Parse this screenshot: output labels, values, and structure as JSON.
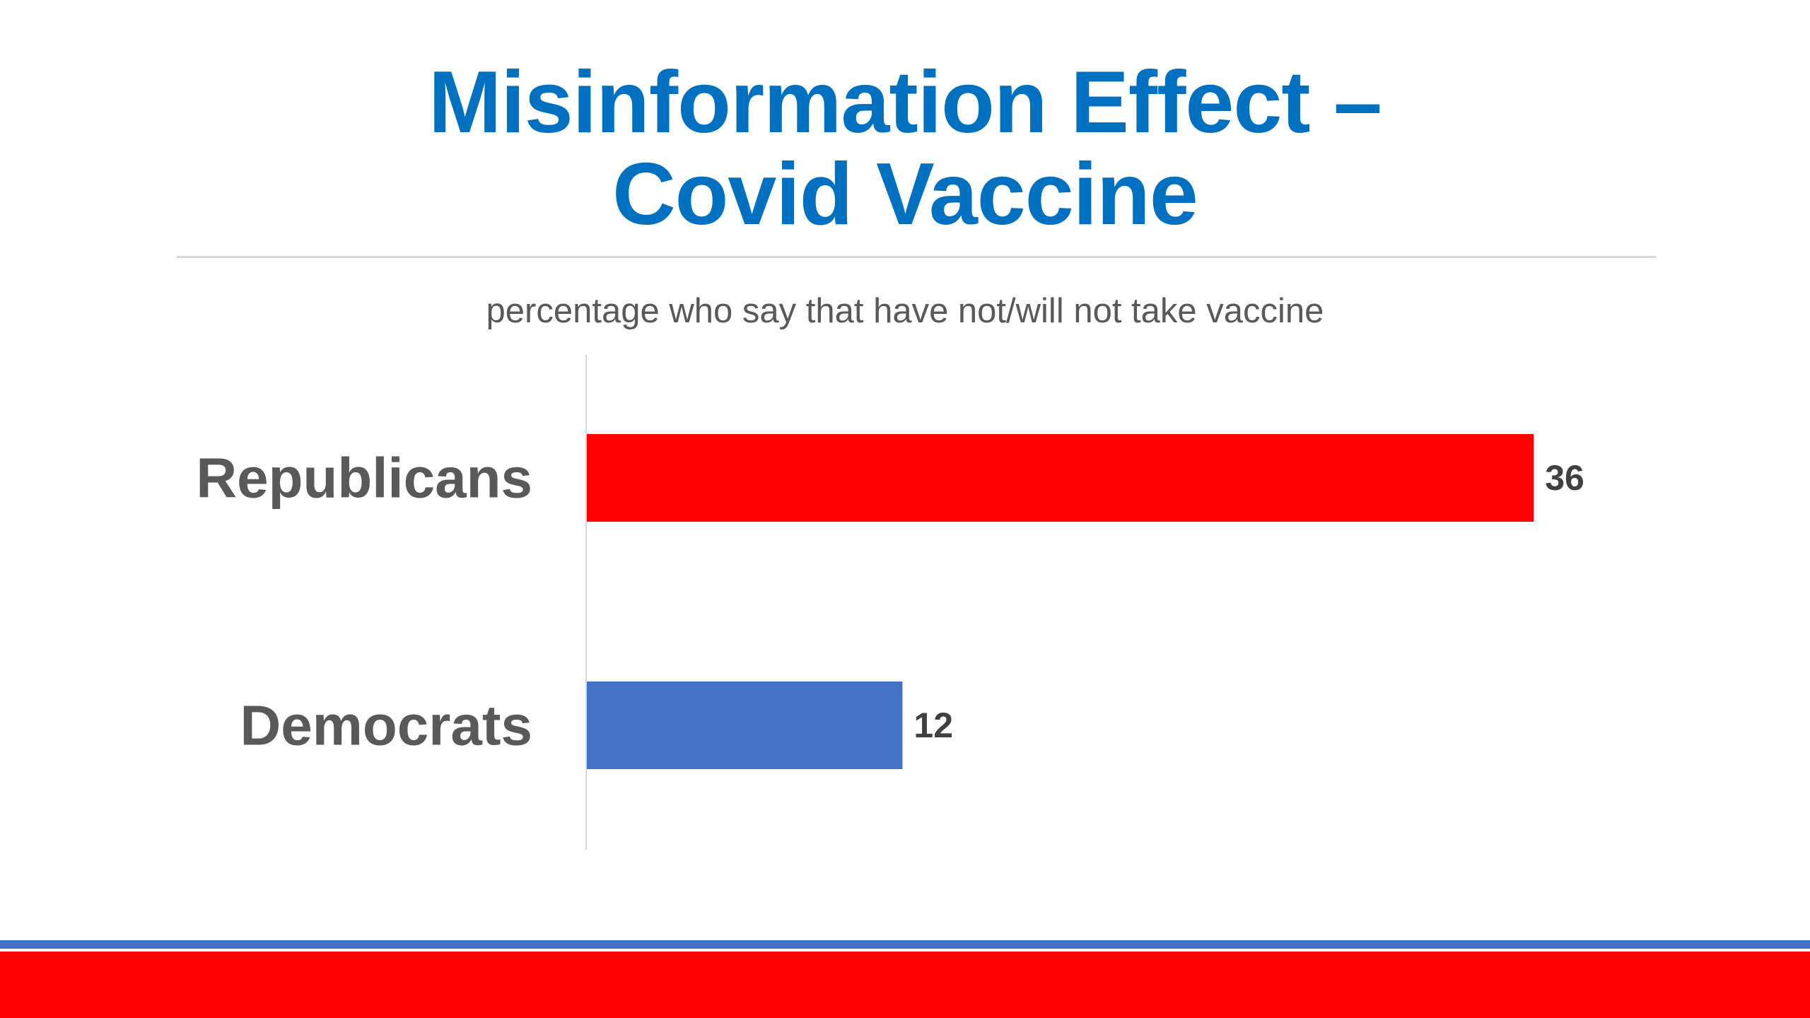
{
  "slide": {
    "title_line1": "Misinformation Effect –",
    "title_line2": "Covid Vaccine",
    "subtitle": "percentage who say that have not/will not take vaccine"
  },
  "colors": {
    "title": "#0070c0",
    "republicans_bar": "#ff0000",
    "democrats_bar": "#4472c4",
    "footer_stripe_blue": "#4472c4",
    "footer_band_red": "#ff0000"
  },
  "chart_data": {
    "type": "bar",
    "orientation": "horizontal",
    "title": "",
    "xlabel": "",
    "ylabel": "",
    "categories": [
      "Republicans",
      "Democrats"
    ],
    "values": [
      36,
      12
    ],
    "bar_colors": [
      "#ff0000",
      "#4472c4"
    ],
    "data_labels": [
      "36",
      "12"
    ],
    "xlim": [
      0,
      40
    ],
    "grid": false,
    "legend": "none"
  }
}
